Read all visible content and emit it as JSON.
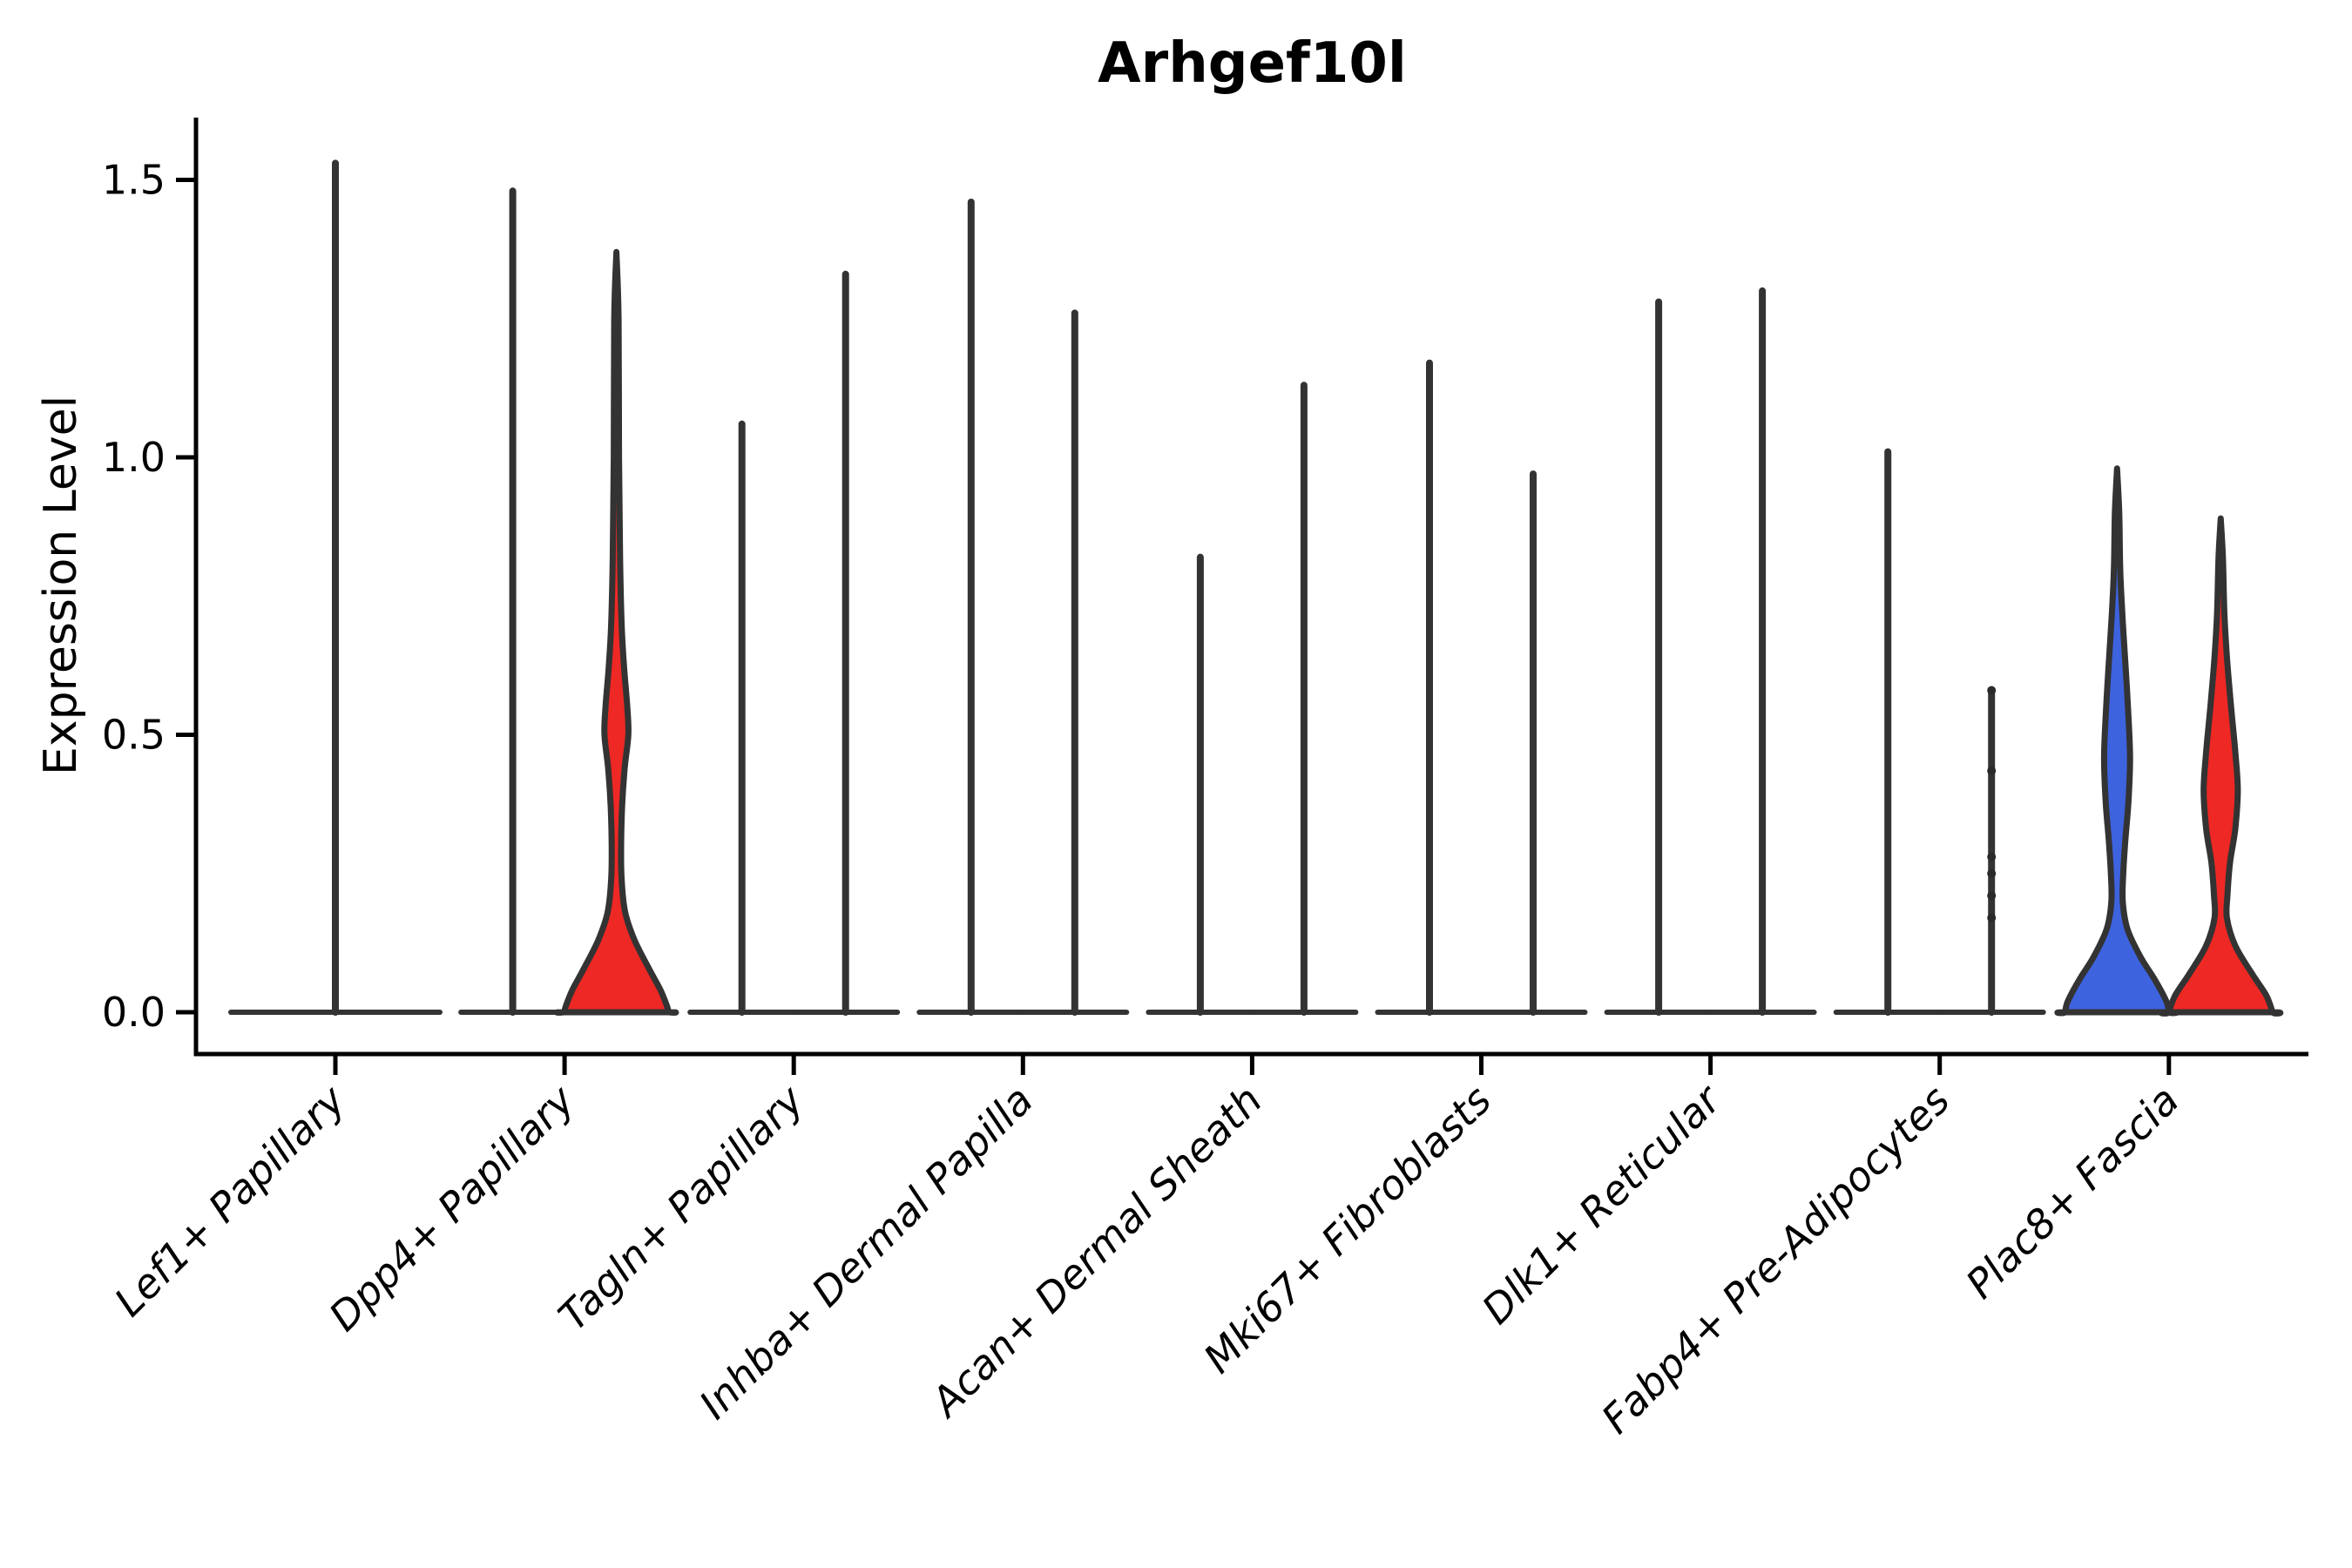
{
  "colors": {
    "group_blue_fill": "#3e63de",
    "group_red_fill": "#ee2824",
    "violin_outline": "#333333",
    "axis_color": "#000000",
    "text_color": "#000000",
    "background": "#ffffff"
  },
  "chart_data": {
    "type": "violin",
    "title": "Arhgef10l",
    "ylabel": "Expression Level",
    "xlabel": "",
    "ylim": [
      -0.08,
      1.62
    ],
    "yticks": [
      {
        "label": "0.0",
        "value": 0.0
      },
      {
        "label": "0.5",
        "value": 0.5
      },
      {
        "label": "1.0",
        "value": 1.0
      },
      {
        "label": "1.5",
        "value": 1.5
      }
    ],
    "grid": false,
    "legend": "none",
    "categories": [
      "Lef1+ Papillary",
      "Dpp4+ Papillary",
      "Tagln+ Papillary",
      "Inhba+ Dermal Papilla",
      "Acan+ Dermal Sheath",
      "Mki67+ Fibroblasts",
      "Dlk1+ Reticular",
      "Fabp4+ Pre-Adipocytes",
      "Plac8+ Fascia"
    ],
    "groups": [
      "blue",
      "red"
    ],
    "note": "Expression concentrated at 0 for most clusters; violins collapse to thin spikes reaching the listed max value. Colored bodies show visible density.",
    "violins": [
      {
        "category": 0,
        "group": "single",
        "shape": "spike",
        "max": 1.53
      },
      {
        "category": 1,
        "group": "left",
        "shape": "spike",
        "max": 1.48
      },
      {
        "category": 1,
        "group": "right",
        "shape": "body",
        "max": 1.37,
        "fill": "red",
        "profile": [
          [
            1.37,
            0
          ],
          [
            1.25,
            0.04
          ],
          [
            1.0,
            0.05
          ],
          [
            0.82,
            0.07
          ],
          [
            0.7,
            0.1
          ],
          [
            0.62,
            0.15
          ],
          [
            0.55,
            0.21
          ],
          [
            0.5,
            0.23
          ],
          [
            0.44,
            0.16
          ],
          [
            0.37,
            0.11
          ],
          [
            0.3,
            0.09
          ],
          [
            0.24,
            0.1
          ],
          [
            0.18,
            0.17
          ],
          [
            0.13,
            0.35
          ],
          [
            0.08,
            0.62
          ],
          [
            0.04,
            0.85
          ],
          [
            0.01,
            0.98
          ],
          [
            0,
            1.0
          ]
        ]
      },
      {
        "category": 2,
        "group": "left",
        "shape": "spike",
        "max": 1.06
      },
      {
        "category": 2,
        "group": "right",
        "shape": "spike",
        "max": 1.33
      },
      {
        "category": 3,
        "group": "left",
        "shape": "spike",
        "max": 1.46
      },
      {
        "category": 3,
        "group": "right",
        "shape": "spike",
        "max": 1.26
      },
      {
        "category": 4,
        "group": "left",
        "shape": "spike",
        "max": 0.82
      },
      {
        "category": 4,
        "group": "right",
        "shape": "spike",
        "max": 1.13
      },
      {
        "category": 5,
        "group": "left",
        "shape": "spike",
        "max": 1.17
      },
      {
        "category": 5,
        "group": "right",
        "shape": "spike",
        "max": 0.97
      },
      {
        "category": 6,
        "group": "left",
        "shape": "spike",
        "max": 1.28
      },
      {
        "category": 6,
        "group": "right",
        "shape": "spike",
        "max": 1.3
      },
      {
        "category": 7,
        "group": "left",
        "shape": "spike",
        "max": 1.01
      },
      {
        "category": 7,
        "group": "right",
        "shape": "spike",
        "max": 0.58,
        "dots": [
          0.58,
          0.435,
          0.28,
          0.25,
          0.21,
          0.17
        ]
      },
      {
        "category": 8,
        "group": "left",
        "shape": "body",
        "max": 0.98,
        "fill": "blue",
        "profile": [
          [
            0.98,
            0
          ],
          [
            0.9,
            0.04
          ],
          [
            0.8,
            0.06
          ],
          [
            0.72,
            0.1
          ],
          [
            0.63,
            0.16
          ],
          [
            0.55,
            0.21
          ],
          [
            0.46,
            0.25
          ],
          [
            0.38,
            0.22
          ],
          [
            0.31,
            0.16
          ],
          [
            0.25,
            0.12
          ],
          [
            0.2,
            0.11
          ],
          [
            0.15,
            0.2
          ],
          [
            0.1,
            0.45
          ],
          [
            0.06,
            0.72
          ],
          [
            0.02,
            0.95
          ],
          [
            0,
            1.0
          ]
        ]
      },
      {
        "category": 8,
        "group": "right",
        "shape": "body",
        "max": 0.89,
        "fill": "red",
        "profile": [
          [
            0.89,
            0
          ],
          [
            0.82,
            0.04
          ],
          [
            0.72,
            0.07
          ],
          [
            0.64,
            0.12
          ],
          [
            0.55,
            0.2
          ],
          [
            0.47,
            0.28
          ],
          [
            0.4,
            0.33
          ],
          [
            0.33,
            0.28
          ],
          [
            0.27,
            0.18
          ],
          [
            0.21,
            0.13
          ],
          [
            0.17,
            0.12
          ],
          [
            0.12,
            0.28
          ],
          [
            0.07,
            0.6
          ],
          [
            0.03,
            0.88
          ],
          [
            0,
            1.0
          ]
        ]
      }
    ]
  }
}
